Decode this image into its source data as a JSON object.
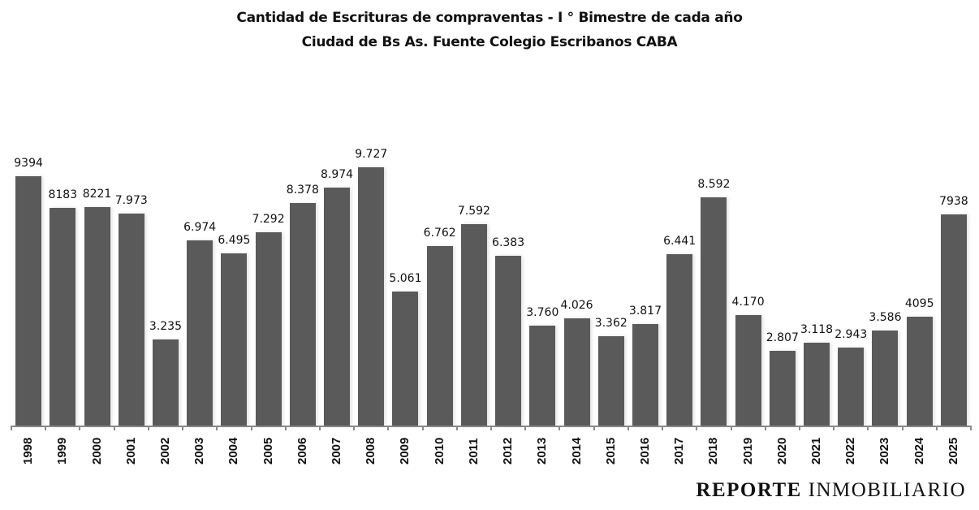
{
  "header": {
    "title_line1": "Cantidad de Escrituras de compraventas - I ° Bimestre de cada año",
    "title_line2": "Ciudad de Bs As. Fuente Colegio Escribanos CABA"
  },
  "brand": {
    "bold": "REPORTE",
    "light": "INMOBILIARIO"
  },
  "colors": {
    "bar": "#5a5a5a",
    "axis": "#8a8a8a",
    "text": "#111111",
    "background": "#ffffff"
  },
  "chart_data": {
    "type": "bar",
    "title": "Cantidad de Escrituras de compraventas - I ° Bimestre de cada año",
    "subtitle": "Ciudad de Bs As. Fuente Colegio Escribanos CABA",
    "xlabel": "",
    "ylabel": "",
    "grid": false,
    "legend": null,
    "ylim": [
      0,
      10000
    ],
    "categories": [
      "1998",
      "1999",
      "2000",
      "2001",
      "2002",
      "2003",
      "2004",
      "2005",
      "2006",
      "2007",
      "2008",
      "2009",
      "2010",
      "2011",
      "2012",
      "2013",
      "2014",
      "2015",
      "2016",
      "2017",
      "2018",
      "2019",
      "2020",
      "2021",
      "2022",
      "2023",
      "2024",
      "2025"
    ],
    "values": [
      9394,
      8183,
      8221,
      7973,
      3235,
      6974,
      6495,
      7292,
      8378,
      8974,
      9727,
      5061,
      6762,
      7592,
      6383,
      3760,
      4026,
      3362,
      3817,
      6441,
      8592,
      4170,
      2807,
      3118,
      2943,
      3586,
      4095,
      7938
    ],
    "data_labels": [
      "9394",
      "8183",
      "8221",
      "7.973",
      "3.235",
      "6.974",
      "6.495",
      "7.292",
      "8.378",
      "8.974",
      "9.727",
      "5.061",
      "6.762",
      "7.592",
      "6.383",
      "3.760",
      "4.026",
      "3.362",
      "3.817",
      "6.441",
      "8.592",
      "4.170",
      "2.807",
      "3.118",
      "2.943",
      "3.586",
      "4095",
      "7938"
    ]
  }
}
